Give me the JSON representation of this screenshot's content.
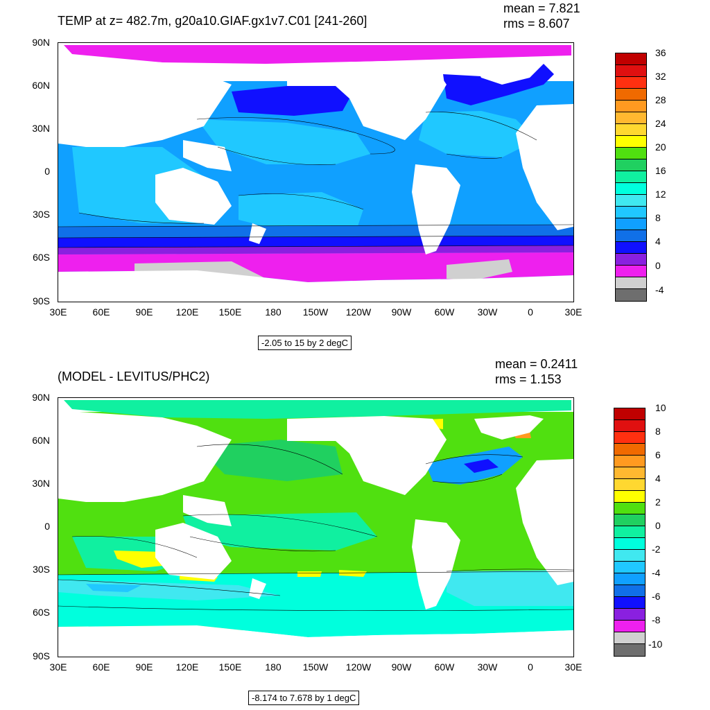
{
  "panels": [
    {
      "id": "top",
      "title": "TEMP at z= 482.7m, g20a10.GIAF.gx1v7.C01 [241-260]",
      "mean_text": "mean = 7.821",
      "rms_text": "rms = 8.607",
      "info": "-2.05 to 15 by 2 degC",
      "yticks": [
        "90N",
        "60N",
        "30N",
        "0",
        "30S",
        "60S",
        "90S"
      ],
      "xticks": [
        "30E",
        "60E",
        "90E",
        "120E",
        "150E",
        "180",
        "150W",
        "120W",
        "90W",
        "60W",
        "30W",
        "0",
        "30E"
      ],
      "colorbar": {
        "labels": [
          "36",
          "32",
          "28",
          "24",
          "20",
          "16",
          "12",
          "8",
          "4",
          "0",
          "-4"
        ],
        "colors": [
          "#c00000",
          "#e01010",
          "#ff3010",
          "#f06a00",
          "#ff9a20",
          "#ffb830",
          "#ffd830",
          "#ffff00",
          "#50e010",
          "#20d060",
          "#10f0a0",
          "#00ffdd",
          "#40e8f0",
          "#20c8ff",
          "#10a0ff",
          "#1070e8",
          "#1010ff",
          "#8a20e0",
          "#ee20ee",
          "#d0d0d0",
          "#6e6e6e"
        ]
      }
    },
    {
      "id": "bottom",
      "title": "(MODEL - LEVITUS/PHC2)",
      "mean_text": "mean = 0.2411",
      "rms_text": "rms = 1.153",
      "info": "-8.174 to 7.678 by 1 degC",
      "yticks": [
        "90N",
        "60N",
        "30N",
        "0",
        "30S",
        "60S",
        "90S"
      ],
      "xticks": [
        "30E",
        "60E",
        "90E",
        "120E",
        "150E",
        "180",
        "150W",
        "120W",
        "90W",
        "60W",
        "30W",
        "0",
        "30E"
      ],
      "colorbar": {
        "labels": [
          "10",
          "8",
          "6",
          "4",
          "2",
          "0",
          "-2",
          "-4",
          "-6",
          "-8",
          "-10"
        ],
        "colors": [
          "#c00000",
          "#e01010",
          "#ff3010",
          "#f06a00",
          "#ff9a20",
          "#ffb830",
          "#ffd830",
          "#ffff00",
          "#50e010",
          "#20d060",
          "#10f0a0",
          "#00ffdd",
          "#40e8f0",
          "#20c8ff",
          "#10a0ff",
          "#1070e8",
          "#1010ff",
          "#8a20e0",
          "#ee20ee",
          "#d0d0d0",
          "#6e6e6e"
        ]
      }
    }
  ]
}
